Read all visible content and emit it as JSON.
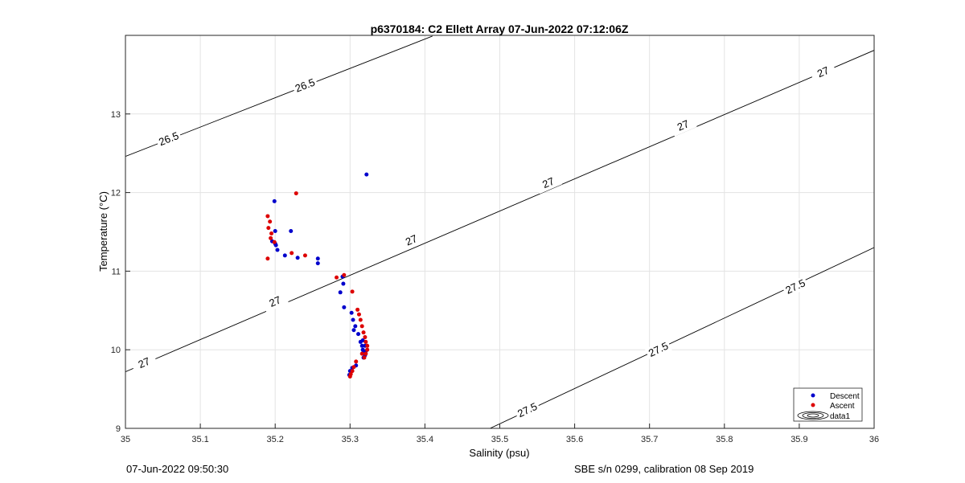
{
  "chart_data": {
    "type": "scatter",
    "title": "p6370184: C2 Ellett Array 07-Jun-2022 07:12:06Z",
    "xlabel": "Salinity (psu)",
    "ylabel": "Temperature (°C)",
    "xlim": [
      35,
      36
    ],
    "ylim": [
      9,
      14
    ],
    "x_ticks": [
      "35",
      "35.1",
      "35.2",
      "35.3",
      "35.4",
      "35.5",
      "35.6",
      "35.7",
      "35.8",
      "35.9",
      "36"
    ],
    "y_ticks": [
      "9",
      "10",
      "11",
      "12",
      "13"
    ],
    "grid": true,
    "legend_position": "bottom-right",
    "legend": [
      "Descent",
      "Ascent",
      "data1"
    ],
    "contours": [
      {
        "level": "26.5",
        "points": [
          [
            35.0,
            12.46
          ],
          [
            35.41,
            13.99
          ]
        ],
        "labels": [
          {
            "x": 35.058,
            "y": 12.68
          },
          {
            "x": 35.24,
            "y": 13.36
          }
        ]
      },
      {
        "level": "27",
        "points": [
          [
            35.0,
            9.72
          ],
          [
            36.0,
            13.81
          ]
        ],
        "labels": [
          {
            "x": 35.025,
            "y": 9.83
          },
          {
            "x": 35.2,
            "y": 10.61
          },
          {
            "x": 35.382,
            "y": 11.39
          },
          {
            "x": 35.565,
            "y": 12.12
          },
          {
            "x": 35.745,
            "y": 12.85
          },
          {
            "x": 35.932,
            "y": 13.53
          }
        ]
      },
      {
        "level": "27.5",
        "points": [
          [
            35.487,
            9.0
          ],
          [
            36.0,
            11.3
          ]
        ],
        "labels": [
          {
            "x": 35.537,
            "y": 9.23
          },
          {
            "x": 35.712,
            "y": 10.0
          },
          {
            "x": 35.895,
            "y": 10.8
          }
        ]
      }
    ],
    "series": [
      {
        "name": "Descent",
        "color": "#0000cc",
        "x": [
          35.322,
          35.199,
          35.2,
          35.221,
          35.196,
          35.2,
          35.201,
          35.203,
          35.213,
          35.23,
          35.257,
          35.257,
          35.29,
          35.291,
          35.287,
          35.292,
          35.302,
          35.304,
          35.307,
          35.305,
          35.311,
          35.314,
          35.316,
          35.317,
          35.318,
          35.32,
          35.318,
          35.317,
          35.32,
          35.321,
          35.308,
          35.303,
          35.3,
          35.299
        ],
        "y": [
          12.23,
          11.89,
          11.51,
          11.51,
          11.38,
          11.35,
          11.33,
          11.27,
          11.2,
          11.17,
          11.16,
          11.1,
          10.93,
          10.84,
          10.73,
          10.54,
          10.47,
          10.38,
          10.3,
          10.25,
          10.2,
          10.1,
          10.05,
          10.0,
          9.97,
          9.93,
          9.9,
          10.12,
          10.05,
          9.98,
          9.8,
          9.77,
          9.73,
          9.68
        ]
      },
      {
        "name": "Ascent",
        "color": "#dd0000",
        "x": [
          35.228,
          35.19,
          35.193,
          35.191,
          35.195,
          35.194,
          35.199,
          35.222,
          35.24,
          35.19,
          35.282,
          35.292,
          35.303,
          35.31,
          35.312,
          35.314,
          35.316,
          35.318,
          35.32,
          35.321,
          35.323,
          35.323,
          35.321,
          35.319,
          35.316,
          35.308,
          35.305,
          35.303,
          35.301,
          35.3
        ],
        "y": [
          11.99,
          11.7,
          11.63,
          11.55,
          11.48,
          11.42,
          11.37,
          11.23,
          11.2,
          11.16,
          10.92,
          10.95,
          10.74,
          10.51,
          10.45,
          10.38,
          10.3,
          10.22,
          10.16,
          10.1,
          10.05,
          10.0,
          9.95,
          9.9,
          9.95,
          9.85,
          9.78,
          9.73,
          9.69,
          9.66
        ]
      }
    ]
  },
  "footer": {
    "left": "07-Jun-2022 09:50:30",
    "right": "SBE s/n 0299, calibration 08 Sep 2019"
  }
}
